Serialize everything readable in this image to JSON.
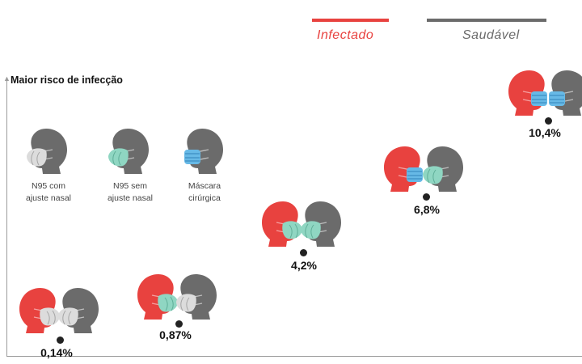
{
  "legend": {
    "infected": {
      "label": "Infectado",
      "color": "#e8423f"
    },
    "healthy": {
      "label": "Saudável",
      "color": "#6b6b6b"
    }
  },
  "axis": {
    "title": "Maior risco de infecção"
  },
  "key": [
    {
      "mask": "n95-fit",
      "line1": "N95 com",
      "line2": "ajuste nasal"
    },
    {
      "mask": "n95-nofit",
      "line1": "N95 sem",
      "line2": "ajuste nasal"
    },
    {
      "mask": "surgical",
      "line1": "Máscara",
      "line2": "cirúrgica"
    }
  ],
  "scenarios": [
    {
      "infected_mask": "n95-fit",
      "healthy_mask": "n95-fit",
      "risk_label": "0,14%"
    },
    {
      "infected_mask": "n95-nofit",
      "healthy_mask": "n95-fit",
      "risk_label": "0,87%"
    },
    {
      "infected_mask": "n95-nofit",
      "healthy_mask": "n95-nofit",
      "risk_label": "4,2%"
    },
    {
      "infected_mask": "surgical",
      "healthy_mask": "n95-nofit",
      "risk_label": "6,8%"
    },
    {
      "infected_mask": "surgical",
      "healthy_mask": "surgical",
      "risk_label": "10,4%"
    }
  ],
  "mask_colors": {
    "n95-fit": "#dcdcdc",
    "n95-nofit": "#8fd6c2",
    "surgical": "#67b9e6"
  }
}
